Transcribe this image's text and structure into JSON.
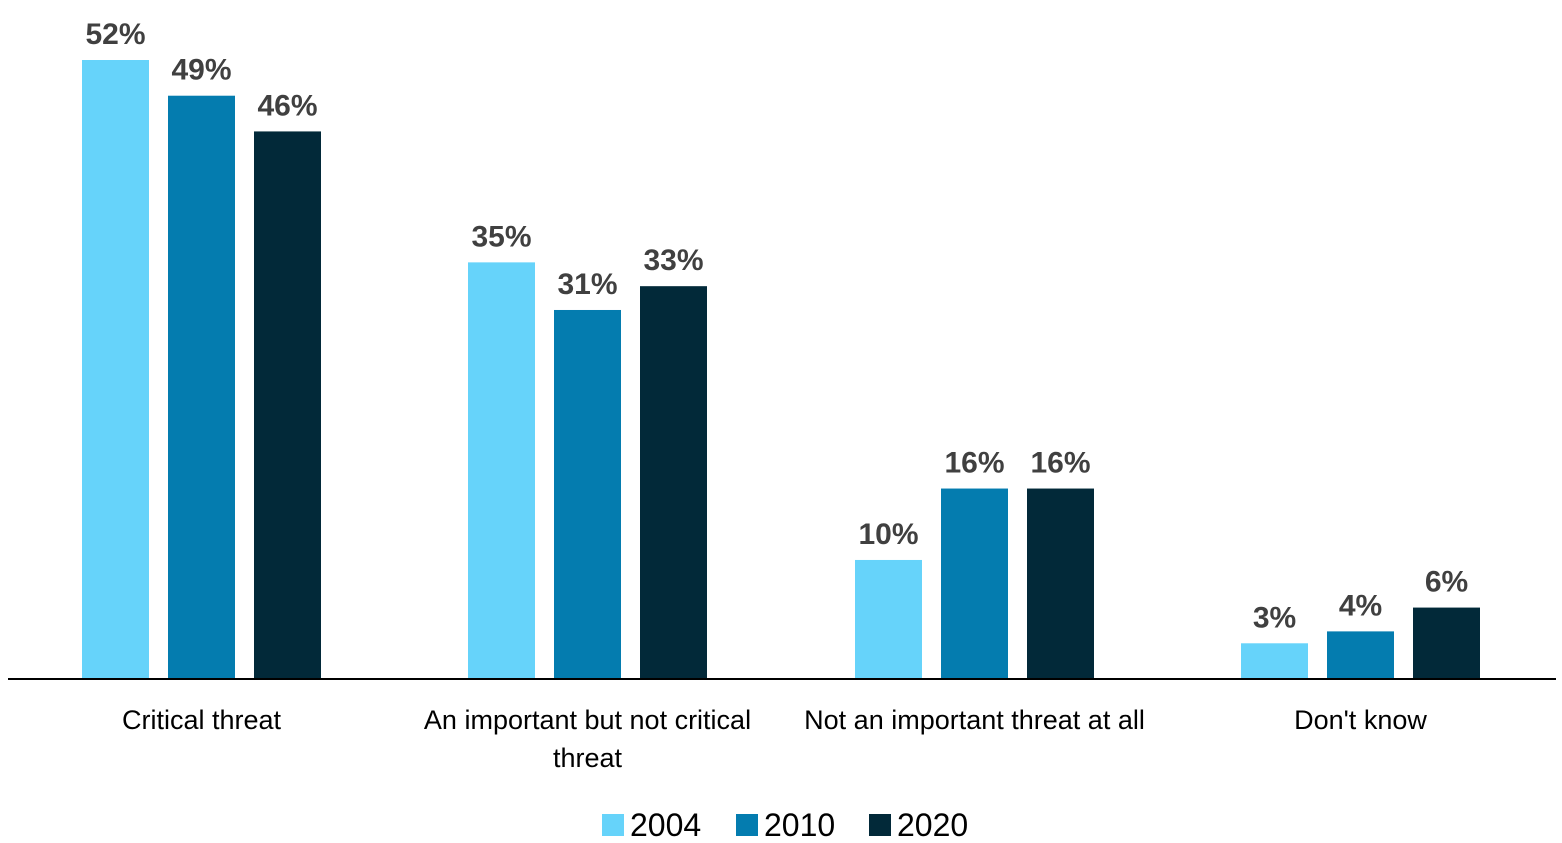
{
  "chart_data": {
    "type": "bar",
    "categories": [
      [
        "Critical threat"
      ],
      [
        "An important but not critical",
        "threat"
      ],
      [
        "Not an important threat at all"
      ],
      [
        "Don't know"
      ]
    ],
    "series": [
      {
        "name": "2004",
        "color": "#66d3fa",
        "values": [
          52,
          35,
          10,
          3
        ],
        "labels": [
          "52%",
          "35%",
          "10%",
          "3%"
        ]
      },
      {
        "name": "2010",
        "color": "#047caf",
        "values": [
          49,
          31,
          16,
          4
        ],
        "labels": [
          "49%",
          "31%",
          "16%",
          "4%"
        ]
      },
      {
        "name": "2020",
        "color": "#022939",
        "values": [
          46,
          33,
          16,
          6
        ],
        "labels": [
          "46%",
          "33%",
          "16%",
          "6%"
        ]
      }
    ],
    "ylim": [
      0,
      52
    ],
    "grid": false,
    "legend": "bottom-center",
    "data_labels": true
  }
}
